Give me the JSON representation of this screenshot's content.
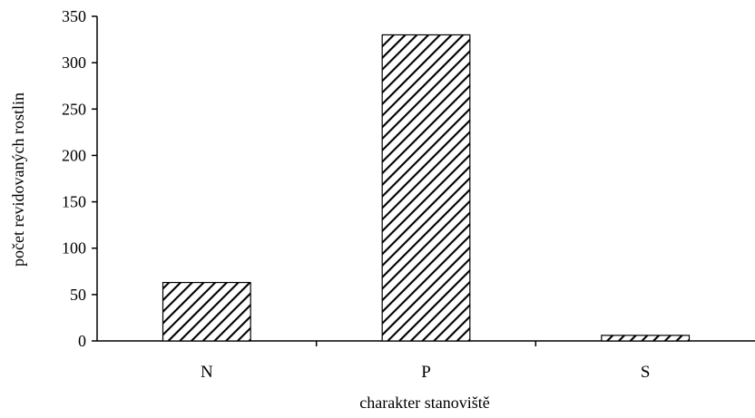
{
  "chart_data": {
    "type": "bar",
    "title": "",
    "xlabel": "charakter stanoviště",
    "ylabel": "počet revidovaných rostlin",
    "categories": [
      "N",
      "P",
      "S"
    ],
    "values": [
      63,
      330,
      6
    ],
    "ylim": [
      0,
      350
    ],
    "yticks": [
      "0",
      "50",
      "100",
      "150",
      "200",
      "250",
      "300",
      "350"
    ],
    "grid": false,
    "legend": "none",
    "bar_fill": "hatched diagonal",
    "colors": {
      "ink": "#000000",
      "background": "#ffffff"
    }
  }
}
